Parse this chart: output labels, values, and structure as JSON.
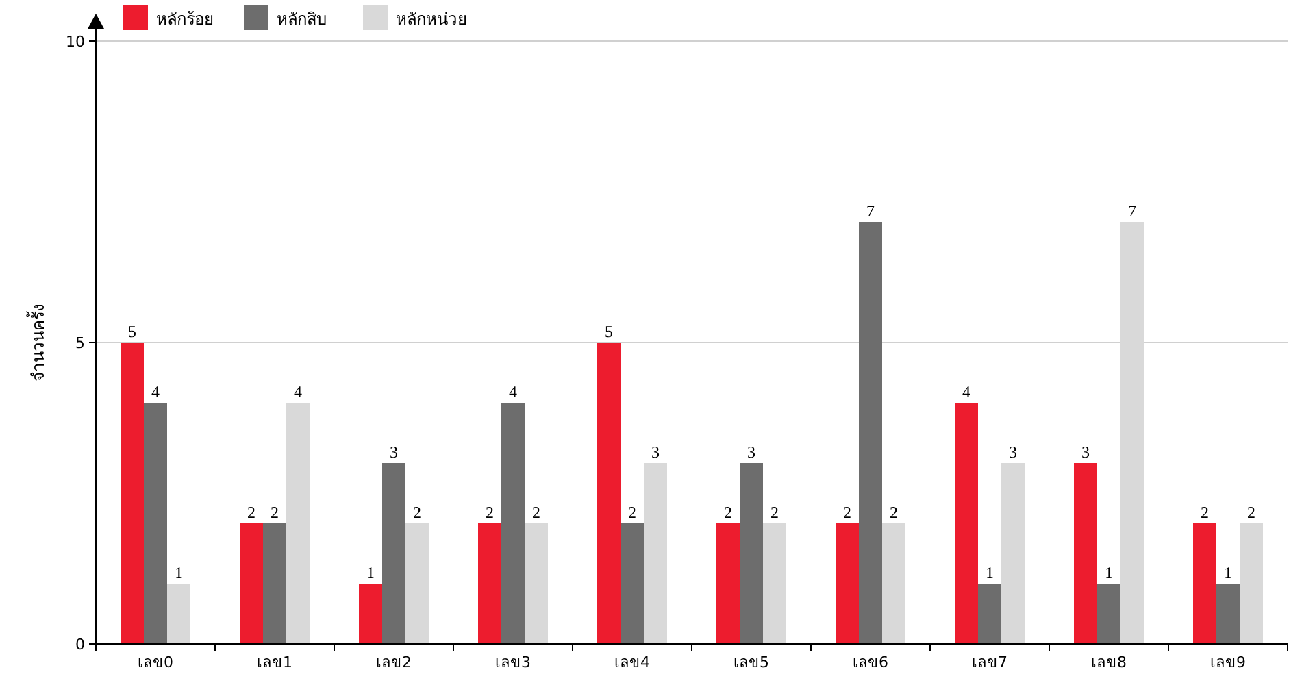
{
  "chart_data": {
    "type": "bar",
    "ylabel": "จำนวนครั้ง",
    "categories": [
      "เลข0",
      "เลข1",
      "เลข2",
      "เลข3",
      "เลข4",
      "เลข5",
      "เลข6",
      "เลข7",
      "เลข8",
      "เลข9"
    ],
    "series": [
      {
        "name": "หลักร้อย",
        "color": "#ed1c2e",
        "values": [
          5,
          2,
          1,
          2,
          5,
          2,
          2,
          4,
          3,
          2
        ]
      },
      {
        "name": "หลักสิบ",
        "color": "#6d6d6d",
        "values": [
          4,
          2,
          3,
          4,
          2,
          3,
          7,
          1,
          1,
          1
        ]
      },
      {
        "name": "หลักหน่วย",
        "color": "#d9d9d9",
        "values": [
          1,
          4,
          2,
          2,
          3,
          2,
          2,
          3,
          7,
          2
        ]
      }
    ],
    "ylim": [
      0,
      10
    ],
    "yticks": [
      0,
      5,
      10
    ],
    "grid": "y",
    "legend": "top left",
    "data_labels": true
  }
}
